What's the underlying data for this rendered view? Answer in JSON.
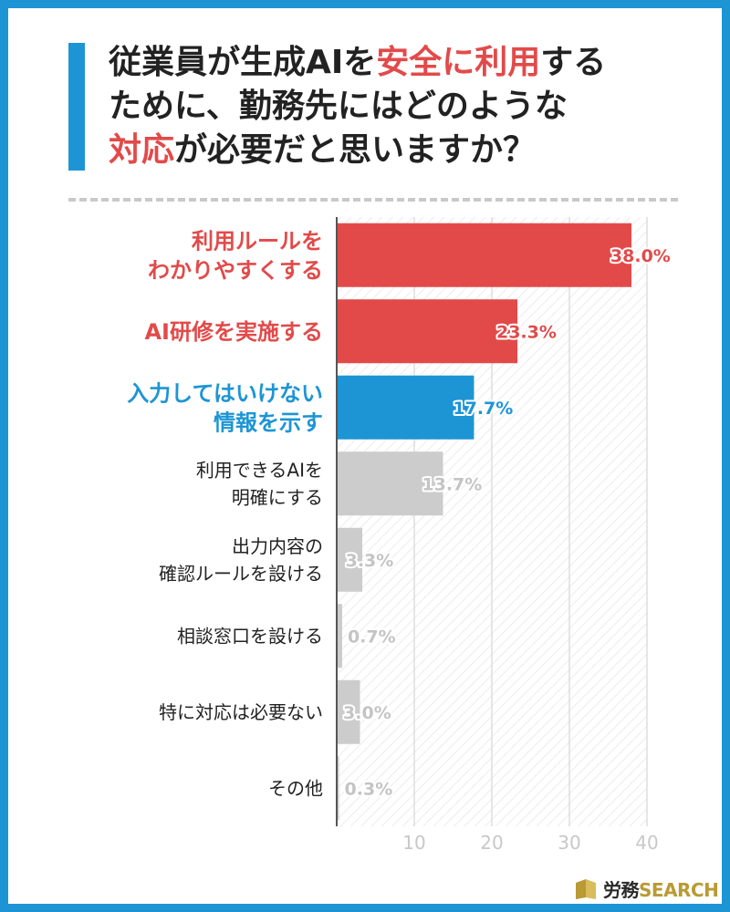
{
  "title": {
    "line1_a": "従業員が生成AIを",
    "line1_b": "安全に利用",
    "line1_c": "する",
    "line2": "ために、勤務先にはどのような",
    "line3_a": "対応",
    "line3_b": "が必要だと思いますか？"
  },
  "logo": {
    "part1": "労務",
    "part2": "SEARCH"
  },
  "colors": {
    "accent_red": "#e24a4a",
    "accent_blue": "#1d95d4",
    "gray": "#cccccc",
    "frame": "#1d95d4"
  },
  "chart_data": {
    "type": "bar",
    "orientation": "horizontal",
    "categories": [
      [
        "利用ルールを",
        "わかりやすくする"
      ],
      [
        "AI研修を実施する"
      ],
      [
        "入力してはいけない",
        "情報を示す"
      ],
      [
        "利用できるAIを",
        "明確にする"
      ],
      [
        "出力内容の",
        "確認ルールを設ける"
      ],
      [
        "相談窓口を設ける"
      ],
      [
        "特に対応は必要ない"
      ],
      [
        "その他"
      ]
    ],
    "values": [
      38.0,
      23.3,
      17.7,
      13.7,
      3.3,
      0.7,
      3.0,
      0.3
    ],
    "value_labels": [
      "38.0%",
      "23.3%",
      "17.7%",
      "13.7%",
      "3.3%",
      "0.7%",
      "3.0%",
      "0.3%"
    ],
    "bar_colors": [
      "#e24a4a",
      "#e24a4a",
      "#1d95d4",
      "#cccccc",
      "#cccccc",
      "#cccccc",
      "#cccccc",
      "#cccccc"
    ],
    "label_colors": [
      "#e24a4a",
      "#e24a4a",
      "#1d95d4",
      "#222222",
      "#222222",
      "#222222",
      "#222222",
      "#222222"
    ],
    "xlim": [
      0,
      40
    ],
    "xticks": [
      10,
      20,
      30,
      40
    ],
    "xtick_labels": [
      "10",
      "20",
      "30",
      "40"
    ],
    "grid": true
  }
}
